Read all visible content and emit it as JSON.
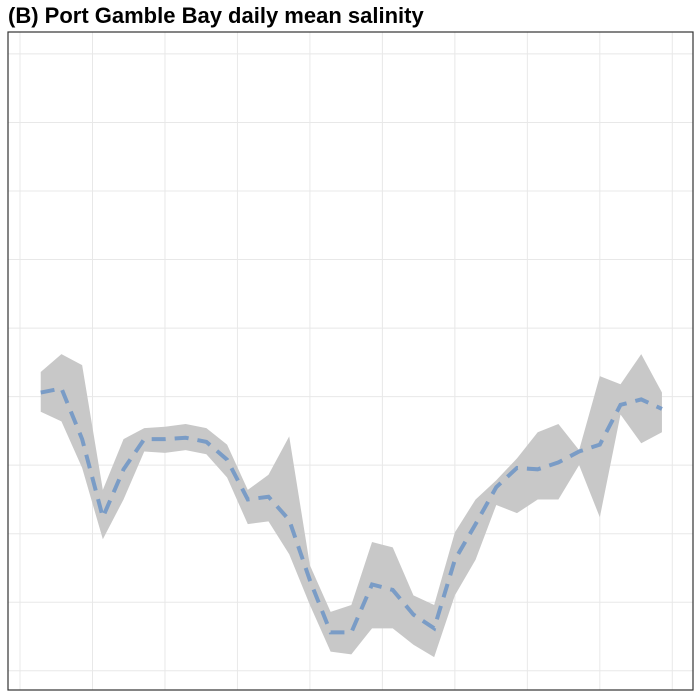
{
  "chart_data": {
    "type": "line",
    "title": "(B) Port Gamble Bay daily mean salinity",
    "x": [
      1,
      2,
      3,
      4,
      5,
      6,
      7,
      8,
      9,
      10,
      11,
      12,
      13,
      14,
      15,
      16,
      17,
      18,
      19,
      20,
      21,
      22,
      23,
      24,
      25,
      26,
      27,
      28,
      29,
      30,
      31
    ],
    "values": [
      2.03,
      2.06,
      1.69,
      1.12,
      1.47,
      1.69,
      1.69,
      1.7,
      1.67,
      1.54,
      1.25,
      1.27,
      1.1,
      0.66,
      0.28,
      0.28,
      0.63,
      0.59,
      0.41,
      0.31,
      0.81,
      1.07,
      1.34,
      1.48,
      1.47,
      1.52,
      1.6,
      1.65,
      1.94,
      1.98,
      1.91
    ],
    "upper": [
      2.18,
      2.31,
      2.23,
      1.32,
      1.69,
      1.77,
      1.78,
      1.8,
      1.77,
      1.65,
      1.32,
      1.43,
      1.71,
      0.77,
      0.43,
      0.48,
      0.94,
      0.9,
      0.55,
      0.48,
      1.01,
      1.25,
      1.39,
      1.55,
      1.74,
      1.8,
      1.61,
      2.15,
      2.09,
      2.31,
      2.03
    ],
    "lower": [
      1.89,
      1.82,
      1.48,
      0.96,
      1.25,
      1.6,
      1.59,
      1.61,
      1.58,
      1.41,
      1.07,
      1.09,
      0.85,
      0.48,
      0.14,
      0.12,
      0.31,
      0.31,
      0.19,
      0.1,
      0.55,
      0.81,
      1.21,
      1.15,
      1.25,
      1.25,
      1.5,
      1.12,
      1.87,
      1.66,
      1.74
    ],
    "color": "#7a9cc6",
    "band_color": "#c8c8c8",
    "xlim": [
      -0.58,
      32.5
    ],
    "ylim": [
      -0.14,
      4.66
    ],
    "xticks": [
      0,
      3.5,
      7,
      10.5,
      14,
      17.5,
      21,
      24.5,
      28,
      31.5
    ],
    "yticks": [
      0,
      0.5,
      1,
      1.5,
      2,
      2.5,
      3,
      3.5,
      4,
      4.5
    ],
    "grid": true
  }
}
